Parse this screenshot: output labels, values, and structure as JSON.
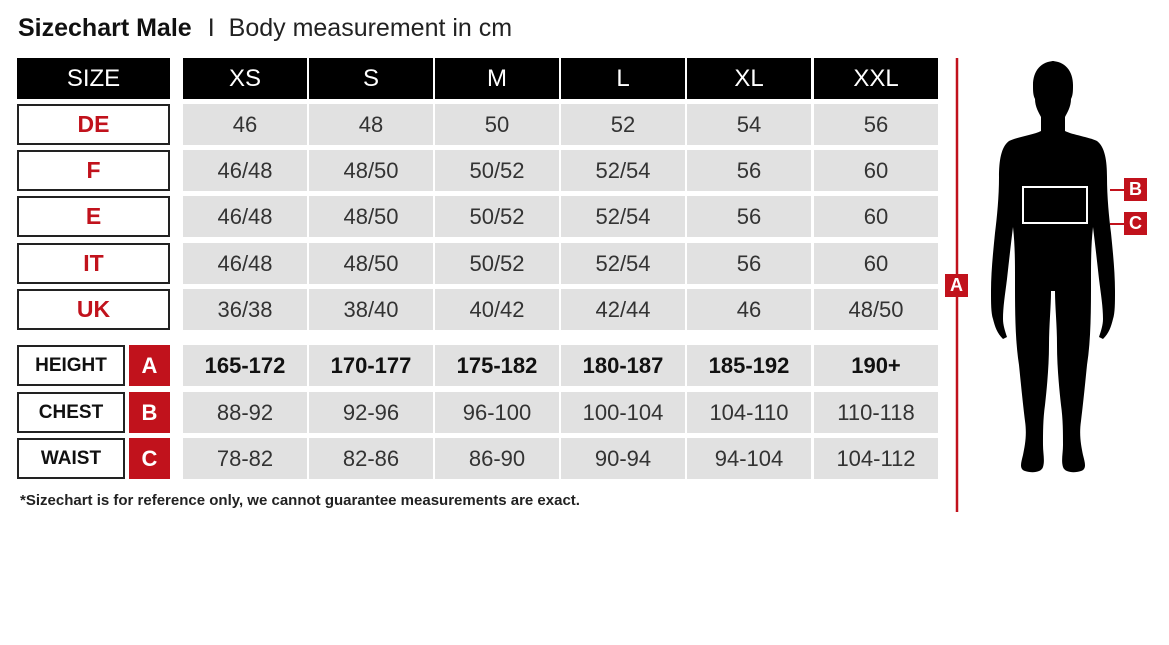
{
  "title": {
    "bold": "Sizechart Male",
    "separator": "I",
    "subtitle": "Body measurement in cm"
  },
  "header": {
    "label": "SIZE",
    "sizes": [
      "XS",
      "S",
      "M",
      "L",
      "XL",
      "XXL"
    ]
  },
  "country_rows": [
    {
      "label": "DE",
      "values": [
        "46",
        "48",
        "50",
        "52",
        "54",
        "56"
      ]
    },
    {
      "label": "F",
      "values": [
        "46/48",
        "48/50",
        "50/52",
        "52/54",
        "56",
        "60"
      ]
    },
    {
      "label": "E",
      "values": [
        "46/48",
        "48/50",
        "50/52",
        "52/54",
        "56",
        "60"
      ]
    },
    {
      "label": "IT",
      "values": [
        "46/48",
        "48/50",
        "50/52",
        "52/54",
        "56",
        "60"
      ]
    },
    {
      "label": "UK",
      "values": [
        "36/38",
        "38/40",
        "40/42",
        "42/44",
        "46",
        "48/50"
      ]
    }
  ],
  "measurement_rows": [
    {
      "label": "HEIGHT",
      "tag": "A",
      "values": [
        "165-172",
        "170-177",
        "175-182",
        "180-187",
        "185-192",
        "190+"
      ]
    },
    {
      "label": "CHEST",
      "tag": "B",
      "values": [
        "88-92",
        "92-96",
        "96-100",
        "100-104",
        "104-110",
        "110-118"
      ]
    },
    {
      "label": "WAIST",
      "tag": "C",
      "values": [
        "78-82",
        "82-86",
        "86-90",
        "90-94",
        "94-104",
        "104-112"
      ]
    }
  ],
  "footnote": "*Sizechart is for reference only, we cannot guarantee measurements are exact.",
  "figure": {
    "height_tag": "A",
    "chest_tag": "B",
    "waist_tag": "C"
  },
  "colors": {
    "accent": "#c1121c",
    "header_bg": "#000000",
    "cell_bg": "#e1e1e1"
  }
}
